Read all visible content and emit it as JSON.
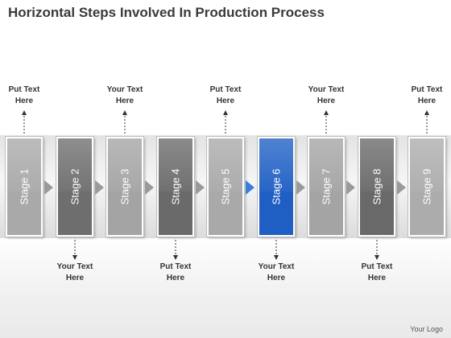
{
  "title": "Horizontal Steps Involved In Production Process",
  "stages": [
    {
      "label": "Stage 1",
      "color": "#a9a9a9",
      "note_position": "top",
      "note_line1": "Put Text",
      "note_line2": "Here"
    },
    {
      "label": "Stage 2",
      "color": "#6e6e6e",
      "note_position": "bottom",
      "note_line1": "Your Text",
      "note_line2": "Here"
    },
    {
      "label": "Stage 3",
      "color": "#a4a4a4",
      "note_position": "top",
      "note_line1": "Your Text",
      "note_line2": "Here"
    },
    {
      "label": "Stage 4",
      "color": "#6a6a6a",
      "note_position": "bottom",
      "note_line1": "Put Text",
      "note_line2": "Here"
    },
    {
      "label": "Stage 5",
      "color": "#a9a9a9",
      "note_position": "top",
      "note_line1": "Put Text",
      "note_line2": "Here"
    },
    {
      "label": "Stage 6",
      "color": "#1f5fc4",
      "note_position": "bottom",
      "note_line1": "Your Text",
      "note_line2": "Here"
    },
    {
      "label": "Stage 7",
      "color": "#a4a4a4",
      "note_position": "top",
      "note_line1": "Your Text",
      "note_line2": "Here"
    },
    {
      "label": "Stage 8",
      "color": "#696969",
      "note_position": "bottom",
      "note_line1": "Put Text",
      "note_line2": "Here"
    },
    {
      "label": "Stage 9",
      "color": "#acacac",
      "note_position": "top",
      "note_line1": "Put Text",
      "note_line2": "Here"
    }
  ],
  "logo": "Your Logo",
  "colors": {
    "arrow": "#9a9a9a",
    "arrow_highlight": "#3a7fd9",
    "title": "#3a3a3a"
  }
}
